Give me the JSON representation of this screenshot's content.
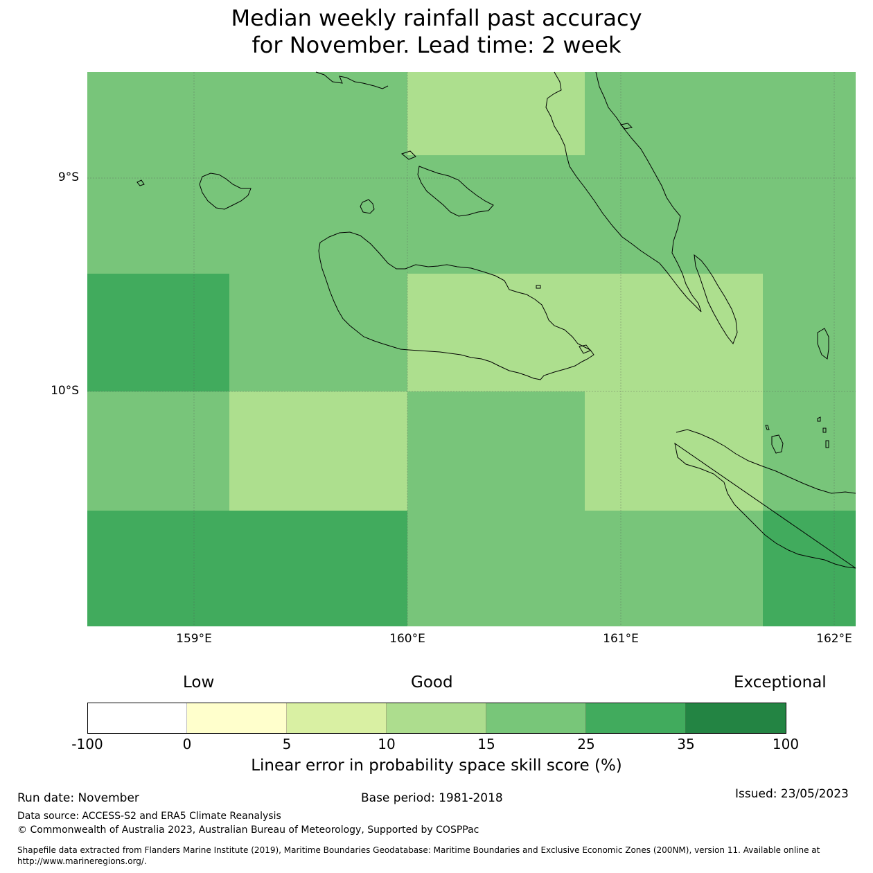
{
  "title": {
    "line1": "Median weekly rainfall past accuracy",
    "line2": "for November. Lead time: 2 week"
  },
  "map": {
    "lon_range": [
      158.5,
      162.1
    ],
    "lat_range": [
      -8.5,
      -11.1
    ],
    "lat_ticks": [
      {
        "value": -9,
        "label": "9°S"
      },
      {
        "value": -10,
        "label": "10°S"
      }
    ],
    "lon_ticks": [
      {
        "value": 159,
        "label": "159°E"
      },
      {
        "value": 160,
        "label": "160°E"
      },
      {
        "value": 161,
        "label": "161°E"
      },
      {
        "value": 162,
        "label": "162°E"
      }
    ],
    "colors": {
      "skill_15_25": "#78c57a",
      "skill_25_35": "#41ab5d",
      "skill_10_15": "#addf8e",
      "grid": "#555555",
      "coastline": "#000000"
    }
  },
  "colorbar": {
    "words": {
      "low": "Low",
      "good": "Good",
      "exceptional": "Exceptional"
    },
    "ticks": [
      "-100",
      "0",
      "5",
      "10",
      "15",
      "25",
      "35",
      "100"
    ],
    "colors": [
      "#ffffff",
      "#ffffcc",
      "#d9f0a3",
      "#addd8e",
      "#78c679",
      "#41ab5d",
      "#238443"
    ],
    "label": "Linear error in probability space skill score (%)"
  },
  "footer": {
    "run_date": "Run date: November",
    "base_period": "Base period: 1981-2018",
    "issued": "Issued: 23/05/2023",
    "data_source": "Data source: ACCESS-S2 and ERA5 Climate Reanalysis",
    "copyright": "© Commonwealth of Australia 2023, Australian Bureau of Meteorology, Supported by COSPPac",
    "shapefile_line1": "Shapefile data extracted from Flanders Marine Institute (2019), Maritime Boundaries Geodatabase: Maritime Boundaries and Exclusive Economic Zones (200NM), version 11. Available online at",
    "shapefile_line2": "http://www.marineregions.org/."
  }
}
